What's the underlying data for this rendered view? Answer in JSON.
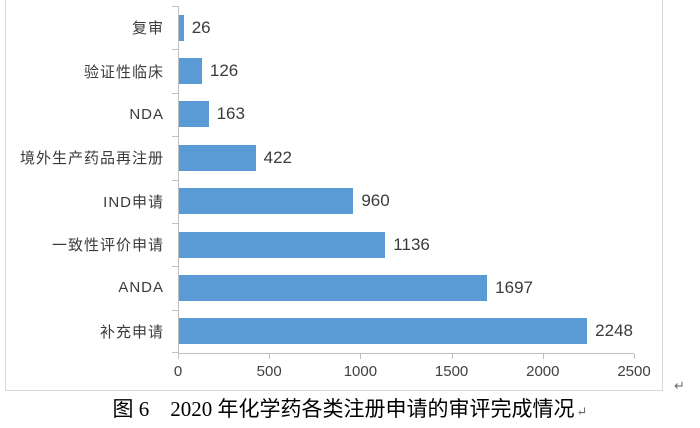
{
  "chart_data": {
    "type": "bar",
    "orientation": "horizontal",
    "categories": [
      "复审",
      "验证性临床",
      "NDA",
      "境外生产药品再注册",
      "IND申请",
      "一致性评价申请",
      "ANDA",
      "补充申请"
    ],
    "values": [
      26,
      126,
      163,
      422,
      960,
      1136,
      1697,
      2248
    ],
    "value_labels": [
      "26",
      "126",
      "163",
      "422",
      "960",
      "1136",
      "1697",
      "2248"
    ],
    "x_ticks": [
      "0",
      "500",
      "1000",
      "1500",
      "2000",
      "2500"
    ],
    "xlim": [
      0,
      2500
    ],
    "grid": false,
    "legend": false,
    "title": ""
  },
  "caption": {
    "text": "图 6　2020 年化学药各类注册申请的审评完成情况"
  },
  "marks": {
    "glyph": "↵"
  },
  "colors": {
    "bar": "#5B9BD5",
    "axis": "#BFBFBF",
    "frame_border": "#D9D9D9",
    "value_text": "#3B3B3B",
    "tick_text": "#404040"
  }
}
